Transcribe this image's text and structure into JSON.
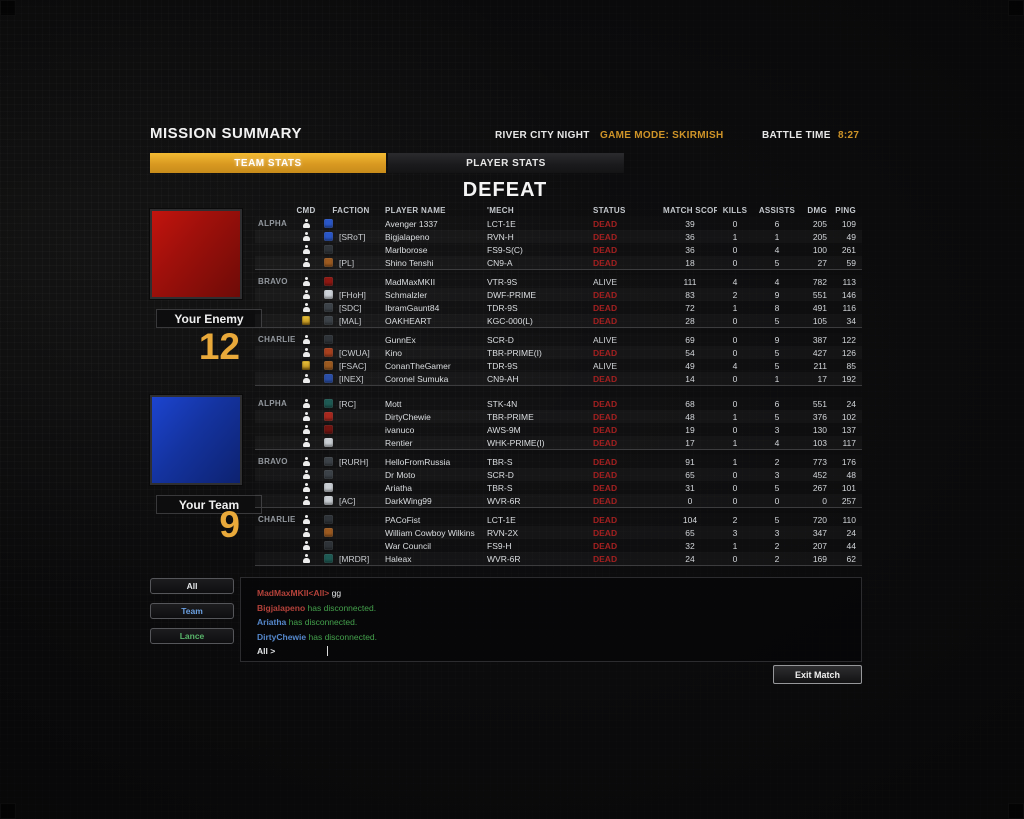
{
  "header": {
    "title": "MISSION SUMMARY",
    "map": "RIVER CITY NIGHT",
    "game_mode": "GAME MODE: SKIRMISH",
    "battle_time_label": "BATTLE TIME",
    "battle_time": "8:27"
  },
  "tabs": [
    {
      "label": "TEAM STATS",
      "active": true
    },
    {
      "label": "PLAYER STATS",
      "active": false
    }
  ],
  "result": "DEFEAT",
  "colors": {
    "accent_gold": "#e9a93a",
    "dead": "#a32020",
    "alive": "#cfd2d6",
    "enemy_flag": "#a3120c",
    "team_flag": "#16369f"
  },
  "table": {
    "columns": [
      "CMD",
      "FACTION",
      "PLAYER NAME",
      "'MECH",
      "STATUS",
      "MATCH SCORE",
      "KILLS",
      "ASSISTS",
      "DMG",
      "PING"
    ]
  },
  "teams": [
    {
      "label": "Your Enemy",
      "score": "12",
      "flag": "red",
      "lances": [
        {
          "name": "ALPHA",
          "players": [
            {
              "cmd": "pilot",
              "faction_color": "#2a57c8",
              "tag": "",
              "name": "Avenger 1337",
              "mech": "LCT-1E",
              "status": "DEAD",
              "score": "39",
              "kills": "0",
              "assists": "6",
              "dmg": "205",
              "ping": "109"
            },
            {
              "cmd": "pilot",
              "faction_color": "#2a57c8",
              "tag": "[SRoT]",
              "name": "Bigjalapeno",
              "mech": "RVN-H",
              "status": "DEAD",
              "score": "36",
              "kills": "1",
              "assists": "1",
              "dmg": "205",
              "ping": "49"
            },
            {
              "cmd": "pilot",
              "faction_color": "#2e3338",
              "tag": "",
              "name": "Marlborose",
              "mech": "FS9-S(C)",
              "status": "DEAD",
              "score": "36",
              "kills": "0",
              "assists": "4",
              "dmg": "100",
              "ping": "261"
            },
            {
              "cmd": "pilot",
              "faction_color": "#9c5a20",
              "tag": "[PL]",
              "name": "Shino Tenshi",
              "mech": "CN9-A",
              "status": "DEAD",
              "score": "18",
              "kills": "0",
              "assists": "5",
              "dmg": "27",
              "ping": "59"
            }
          ]
        },
        {
          "name": "BRAVO",
          "players": [
            {
              "cmd": "pilot",
              "faction_color": "#8e1812",
              "tag": "",
              "name": "MadMaxMKII",
              "mech": "VTR-9S",
              "status": "ALIVE",
              "score": "111",
              "kills": "4",
              "assists": "4",
              "dmg": "782",
              "ping": "113"
            },
            {
              "cmd": "pilot",
              "faction_color": "#cdd2d8",
              "tag": "[FHoH]",
              "name": "Schmalzler",
              "mech": "DWF-PRIME",
              "status": "DEAD",
              "score": "83",
              "kills": "2",
              "assists": "9",
              "dmg": "551",
              "ping": "146"
            },
            {
              "cmd": "pilot",
              "faction_color": "#3c4248",
              "tag": "[SDC]",
              "name": "IbramGaunt84",
              "mech": "TDR-9S",
              "status": "DEAD",
              "score": "72",
              "kills": "1",
              "assists": "8",
              "dmg": "491",
              "ping": "116"
            },
            {
              "cmd": "commander",
              "faction_color": "#3c4248",
              "tag": "[MAL]",
              "name": "OAKHEART",
              "mech": "KGC-000(L)",
              "status": "DEAD",
              "score": "28",
              "kills": "0",
              "assists": "5",
              "dmg": "105",
              "ping": "34"
            }
          ]
        },
        {
          "name": "CHARLIE",
          "players": [
            {
              "cmd": "pilot",
              "faction_color": "#2e3338",
              "tag": "",
              "name": "GunnEx",
              "mech": "SCR-D",
              "status": "ALIVE",
              "score": "69",
              "kills": "0",
              "assists": "9",
              "dmg": "387",
              "ping": "122"
            },
            {
              "cmd": "pilot",
              "faction_color": "#a8401e",
              "tag": "[CWUA]",
              "name": "Kino",
              "mech": "TBR-PRIME(I)",
              "status": "DEAD",
              "score": "54",
              "kills": "0",
              "assists": "5",
              "dmg": "427",
              "ping": "126"
            },
            {
              "cmd": "commander",
              "faction_color": "#9c5a20",
              "tag": "[FSAC]",
              "name": "ConanTheGamer",
              "mech": "TDR-9S",
              "status": "ALIVE",
              "score": "49",
              "kills": "4",
              "assists": "5",
              "dmg": "211",
              "ping": "85"
            },
            {
              "cmd": "pilot",
              "faction_color": "#2a4fa8",
              "tag": "[INEX]",
              "name": "Coronel Sumuka",
              "mech": "CN9-AH",
              "status": "DEAD",
              "score": "14",
              "kills": "0",
              "assists": "1",
              "dmg": "17",
              "ping": "192"
            }
          ]
        }
      ]
    },
    {
      "label": "Your Team",
      "score": "9",
      "flag": "blue",
      "lances": [
        {
          "name": "ALPHA",
          "players": [
            {
              "cmd": "pilot",
              "faction_color": "#1e5a54",
              "tag": "[RC]",
              "name": "Mott",
              "mech": "STK-4N",
              "status": "DEAD",
              "score": "68",
              "kills": "0",
              "assists": "6",
              "dmg": "551",
              "ping": "24"
            },
            {
              "cmd": "pilot",
              "faction_color": "#a8281e",
              "tag": "",
              "name": "DirtyChewie",
              "mech": "TBR-PRIME",
              "status": "DEAD",
              "score": "48",
              "kills": "1",
              "assists": "5",
              "dmg": "376",
              "ping": "102"
            },
            {
              "cmd": "pilot",
              "faction_color": "#701410",
              "tag": "",
              "name": "ivanuco",
              "mech": "AWS-9M",
              "status": "DEAD",
              "score": "19",
              "kills": "0",
              "assists": "3",
              "dmg": "130",
              "ping": "137"
            },
            {
              "cmd": "pilot",
              "faction_color": "#c8cdd2",
              "tag": "",
              "name": "Rentier",
              "mech": "WHK-PRIME(I)",
              "status": "DEAD",
              "score": "17",
              "kills": "1",
              "assists": "4",
              "dmg": "103",
              "ping": "117"
            }
          ]
        },
        {
          "name": "BRAVO",
          "players": [
            {
              "cmd": "pilot",
              "faction_color": "#3c4248",
              "tag": "[RURH]",
              "name": "HelloFromRussia",
              "mech": "TBR-S",
              "status": "DEAD",
              "score": "91",
              "kills": "1",
              "assists": "2",
              "dmg": "773",
              "ping": "176"
            },
            {
              "cmd": "pilot",
              "faction_color": "#3c4248",
              "tag": "",
              "name": "Dr Moto",
              "mech": "SCR-D",
              "status": "DEAD",
              "score": "65",
              "kills": "0",
              "assists": "3",
              "dmg": "452",
              "ping": "48"
            },
            {
              "cmd": "pilot",
              "faction_color": "#c8cdd2",
              "tag": "",
              "name": "Ariatha",
              "mech": "TBR-S",
              "status": "DEAD",
              "score": "31",
              "kills": "0",
              "assists": "5",
              "dmg": "267",
              "ping": "101"
            },
            {
              "cmd": "pilot",
              "faction_color": "#c8cdd2",
              "tag": "[AC]",
              "name": "DarkWing99",
              "mech": "WVR-6R",
              "status": "DEAD",
              "score": "0",
              "kills": "0",
              "assists": "0",
              "dmg": "0",
              "ping": "257"
            }
          ]
        },
        {
          "name": "CHARLIE",
          "players": [
            {
              "cmd": "pilot",
              "faction_color": "#2e3338",
              "tag": "",
              "name": "PACoFist",
              "mech": "LCT-1E",
              "status": "DEAD",
              "score": "104",
              "kills": "2",
              "assists": "5",
              "dmg": "720",
              "ping": "110"
            },
            {
              "cmd": "pilot",
              "faction_color": "#9c5a20",
              "tag": "",
              "name": "William Cowboy Wilkins",
              "mech": "RVN-2X",
              "status": "DEAD",
              "score": "65",
              "kills": "3",
              "assists": "3",
              "dmg": "347",
              "ping": "24"
            },
            {
              "cmd": "pilot",
              "faction_color": "#2e3338",
              "tag": "",
              "name": "War Council",
              "mech": "FS9-H",
              "status": "DEAD",
              "score": "32",
              "kills": "1",
              "assists": "2",
              "dmg": "207",
              "ping": "44"
            },
            {
              "cmd": "pilot",
              "faction_color": "#1e5a54",
              "tag": "[MRDR]",
              "name": "Haleax",
              "mech": "WVR-6R",
              "status": "DEAD",
              "score": "24",
              "kills": "0",
              "assists": "2",
              "dmg": "169",
              "ping": "62"
            }
          ]
        }
      ]
    }
  ],
  "chat": {
    "channels": [
      {
        "label": "All",
        "color": "#e6e8ea"
      },
      {
        "label": "Team",
        "color": "#6a9fe0"
      },
      {
        "label": "Lance",
        "color": "#58b56a"
      }
    ],
    "messages": [
      {
        "sender": "MadMaxMKII<All>",
        "sender_color": "#b5423a",
        "text": "gg",
        "text_color": "#e6e8ea"
      },
      {
        "sender": "Bigjalapeno",
        "sender_color": "#b5423a",
        "text": "has disconnected.",
        "text_color": "#44a14c"
      },
      {
        "sender": "Ariatha",
        "sender_color": "#5588cc",
        "text": "has disconnected.",
        "text_color": "#44a14c"
      },
      {
        "sender": "DirtyChewie",
        "sender_color": "#5588cc",
        "text": "has disconnected.",
        "text_color": "#44a14c"
      }
    ],
    "input_prefix": "All >"
  },
  "exit_button_label": "Exit Match"
}
